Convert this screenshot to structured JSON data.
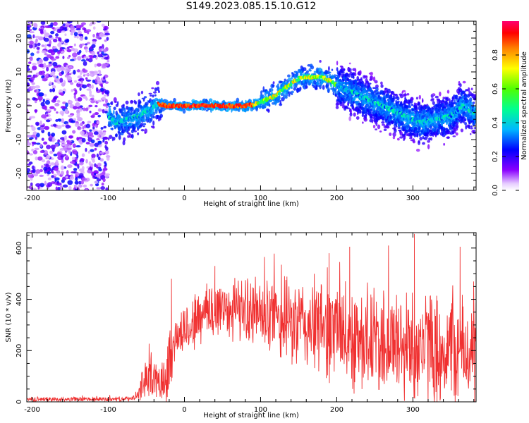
{
  "title": "S149.2023.085.15.10.G12",
  "chart_data": [
    {
      "type": "heatmap",
      "xlabel": "Height of straight line (km)",
      "ylabel": "Frequency (Hz)",
      "xlim": [
        -207,
        383
      ],
      "ylim": [
        -25,
        25
      ],
      "xticks": [
        -200,
        -100,
        0,
        100,
        200,
        300
      ],
      "xtick_labels": [
        "-200",
        "-100",
        "0",
        "100",
        "200",
        "300"
      ],
      "yticks": [
        -20,
        -10,
        0,
        10,
        20
      ],
      "ytick_labels": [
        "-20",
        "-10",
        "0",
        "10",
        "20"
      ],
      "colorbar": {
        "label": "Normalized spectral amplitude",
        "range": [
          0,
          1
        ],
        "ticks": [
          0.0,
          0.2,
          0.4,
          0.6,
          0.8
        ],
        "tick_labels": [
          "0.0",
          "0.2",
          "0.4",
          "0.6",
          "0.8"
        ],
        "colors": [
          "#ffffff",
          "#8000ff",
          "#0000ff",
          "#00c0ff",
          "#00ff80",
          "#80ff00",
          "#ffff00",
          "#ff8000",
          "#ff0000",
          "#ff0080"
        ]
      },
      "ridge": {
        "x": [
          -100,
          -90,
          -75,
          -60,
          -45,
          -35,
          -25,
          0,
          25,
          50,
          75,
          90,
          100,
          110,
          120,
          130,
          140,
          150,
          160,
          170,
          180,
          190,
          200,
          215,
          230,
          250,
          270,
          290,
          310,
          330,
          350,
          365,
          380
        ],
        "frequency": [
          -3,
          -5,
          -4,
          -3,
          -1,
          0.5,
          0,
          0,
          0,
          0,
          0,
          0.3,
          1,
          2,
          3,
          5,
          6.5,
          8,
          8.5,
          8.5,
          8.5,
          7.5,
          6,
          4.5,
          3,
          1,
          -1,
          -3,
          -5,
          -4,
          -3,
          0,
          -2
        ]
      },
      "noise_region_x": [
        -207,
        -100
      ]
    },
    {
      "type": "line",
      "xlabel": "Height of straight line (km)",
      "ylabel": "SNR (10 * v/v)",
      "xlim": [
        -207,
        383
      ],
      "ylim": [
        0,
        660
      ],
      "xticks": [
        -200,
        -100,
        0,
        100,
        200,
        300
      ],
      "xtick_labels": [
        "-200",
        "-100",
        "0",
        "100",
        "200",
        "300"
      ],
      "yticks": [
        0,
        200,
        400,
        600
      ],
      "ytick_labels": [
        "0",
        "200",
        "400",
        "600"
      ],
      "series": [
        {
          "color": "#f03030",
          "envelope": {
            "x": [
              -207,
              -150,
              -100,
              -70,
              -60,
              -55,
              -45,
              -35,
              -20,
              -15,
              -10,
              0,
              20,
              40,
              60,
              80,
              100,
              120,
              150,
              180,
              200,
              230,
              260,
              290,
              320,
              350,
              383
            ],
            "mean": [
              10,
              10,
              10,
              12,
              25,
              80,
              110,
              70,
              140,
              230,
              250,
              280,
              330,
              360,
              370,
              360,
              340,
              320,
              300,
              290,
              270,
              250,
              230,
              220,
              210,
              200,
              190
            ],
            "spread": [
              8,
              8,
              8,
              8,
              20,
              60,
              80,
              60,
              130,
              100,
              80,
              90,
              110,
              120,
              110,
              110,
              130,
              140,
              160,
              170,
              180,
              190,
              190,
              200,
              200,
              200,
              180
            ]
          },
          "peaks": [
            {
              "x": -17,
              "y": 480
            },
            {
              "x": 40,
              "y": 530
            },
            {
              "x": 105,
              "y": 565
            },
            {
              "x": 190,
              "y": 580
            },
            {
              "x": 217,
              "y": 605
            },
            {
              "x": 268,
              "y": 610
            },
            {
              "x": 302,
              "y": 655
            },
            {
              "x": 362,
              "y": 605
            }
          ]
        }
      ]
    }
  ]
}
